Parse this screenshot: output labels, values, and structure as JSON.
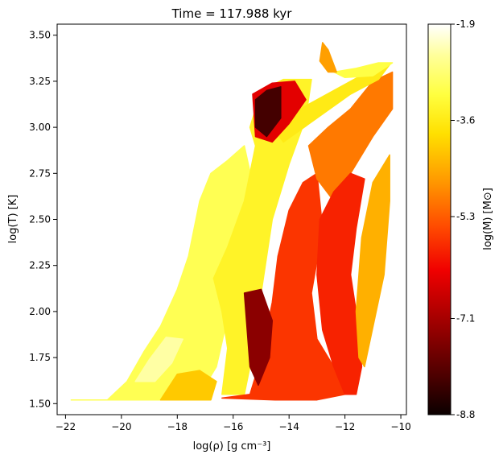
{
  "chart_data": {
    "type": "scatter",
    "title": "Time = 117.988 kyr",
    "xlabel": "log(ρ) [g cm⁻³]",
    "ylabel": "log(T) [K]",
    "xlim": [
      -22.3,
      -9.8
    ],
    "ylim": [
      1.44,
      3.56
    ],
    "xticks": [
      -22,
      -20,
      -18,
      -16,
      -14,
      -12,
      -10
    ],
    "xtick_labels": [
      "−22",
      "−20",
      "−18",
      "−16",
      "−14",
      "−12",
      "−10"
    ],
    "yticks": [
      1.5,
      1.75,
      2.0,
      2.25,
      2.5,
      2.75,
      3.0,
      3.25,
      3.5
    ],
    "ytick_labels": [
      "1.50",
      "1.75",
      "2.00",
      "2.25",
      "2.50",
      "2.75",
      "3.00",
      "3.25",
      "3.50"
    ],
    "colorbar": {
      "label": "log(M) [M⊙]",
      "colormap": "hot",
      "range": [
        -8.8,
        -1.9
      ],
      "ticks": [
        -8.8,
        -7.1,
        -5.3,
        -3.6,
        -1.9
      ],
      "tick_labels": [
        "-8.8",
        "-7.1",
        "-5.3",
        "-3.6",
        "-1.9"
      ]
    },
    "regions": [
      {
        "c": -3.0,
        "pts": [
          [
            -21.8,
            1.52
          ],
          [
            -20.5,
            1.52
          ],
          [
            -19.8,
            1.62
          ],
          [
            -19.2,
            1.78
          ],
          [
            -18.6,
            1.92
          ],
          [
            -18.0,
            2.12
          ],
          [
            -17.6,
            2.3
          ],
          [
            -17.2,
            2.6
          ],
          [
            -16.8,
            2.75
          ],
          [
            -16.2,
            2.82
          ],
          [
            -15.6,
            2.9
          ],
          [
            -15.2,
            2.62
          ],
          [
            -15.6,
            2.3
          ],
          [
            -16.0,
            2.1
          ],
          [
            -16.3,
            1.9
          ],
          [
            -16.6,
            1.7
          ],
          [
            -17.2,
            1.55
          ],
          [
            -18.0,
            1.52
          ],
          [
            -20.0,
            1.52
          ]
        ]
      },
      {
        "c": -2.4,
        "pts": [
          [
            -19.5,
            1.62
          ],
          [
            -18.8,
            1.62
          ],
          [
            -18.2,
            1.72
          ],
          [
            -17.8,
            1.85
          ],
          [
            -18.4,
            1.86
          ],
          [
            -19.0,
            1.74
          ]
        ]
      },
      {
        "c": -3.4,
        "pts": [
          [
            -16.7,
            2.18
          ],
          [
            -16.2,
            2.35
          ],
          [
            -15.6,
            2.6
          ],
          [
            -15.2,
            2.9
          ],
          [
            -15.4,
            3.0
          ],
          [
            -15.0,
            3.2
          ],
          [
            -14.2,
            3.26
          ],
          [
            -13.2,
            3.26
          ],
          [
            -13.4,
            3.05
          ],
          [
            -14.0,
            2.8
          ],
          [
            -14.6,
            2.5
          ],
          [
            -15.0,
            2.1
          ],
          [
            -15.4,
            1.7
          ],
          [
            -15.6,
            1.55
          ],
          [
            -16.4,
            1.55
          ],
          [
            -16.2,
            1.8
          ],
          [
            -16.4,
            2.0
          ]
        ]
      },
      {
        "c": -4.1,
        "pts": [
          [
            -18.6,
            1.52
          ],
          [
            -16.8,
            1.52
          ],
          [
            -16.6,
            1.62
          ],
          [
            -17.2,
            1.68
          ],
          [
            -18.0,
            1.66
          ]
        ]
      },
      {
        "c": -5.7,
        "pts": [
          [
            -16.4,
            1.53
          ],
          [
            -15.4,
            1.55
          ],
          [
            -15.0,
            1.75
          ],
          [
            -14.6,
            2.05
          ],
          [
            -14.4,
            2.3
          ],
          [
            -14.0,
            2.55
          ],
          [
            -13.5,
            2.7
          ],
          [
            -13.0,
            2.75
          ],
          [
            -12.8,
            2.45
          ],
          [
            -13.2,
            2.1
          ],
          [
            -13.0,
            1.85
          ],
          [
            -12.4,
            1.7
          ],
          [
            -12.0,
            1.55
          ],
          [
            -13.0,
            1.52
          ],
          [
            -14.5,
            1.52
          ]
        ]
      },
      {
        "c": -5.0,
        "pts": [
          [
            -13.3,
            2.9
          ],
          [
            -12.6,
            3.0
          ],
          [
            -11.8,
            3.1
          ],
          [
            -11.0,
            3.25
          ],
          [
            -10.3,
            3.3
          ],
          [
            -10.3,
            3.1
          ],
          [
            -11.0,
            2.95
          ],
          [
            -11.8,
            2.75
          ],
          [
            -12.4,
            2.6
          ],
          [
            -13.0,
            2.72
          ]
        ]
      },
      {
        "c": -5.9,
        "pts": [
          [
            -12.9,
            2.5
          ],
          [
            -12.4,
            2.65
          ],
          [
            -11.8,
            2.75
          ],
          [
            -11.3,
            2.72
          ],
          [
            -11.6,
            2.45
          ],
          [
            -11.8,
            2.2
          ],
          [
            -11.5,
            1.9
          ],
          [
            -11.4,
            1.7
          ],
          [
            -11.6,
            1.55
          ],
          [
            -12.0,
            1.55
          ],
          [
            -12.4,
            1.7
          ],
          [
            -12.8,
            1.9
          ],
          [
            -13.0,
            2.2
          ]
        ]
      },
      {
        "c": -4.4,
        "pts": [
          [
            -11.3,
            1.7
          ],
          [
            -10.6,
            2.2
          ],
          [
            -10.4,
            2.6
          ],
          [
            -10.4,
            2.85
          ],
          [
            -11.0,
            2.7
          ],
          [
            -11.4,
            2.4
          ],
          [
            -11.6,
            2.0
          ],
          [
            -11.5,
            1.75
          ]
        ]
      },
      {
        "c": -3.6,
        "pts": [
          [
            -14.6,
            3.0
          ],
          [
            -13.6,
            3.1
          ],
          [
            -12.4,
            3.2
          ],
          [
            -11.2,
            3.3
          ],
          [
            -10.4,
            3.34
          ],
          [
            -10.8,
            3.26
          ],
          [
            -11.8,
            3.18
          ],
          [
            -13.0,
            3.05
          ],
          [
            -14.2,
            2.92
          ]
        ]
      },
      {
        "c": -3.1,
        "pts": [
          [
            -12.4,
            3.3
          ],
          [
            -11.6,
            3.32
          ],
          [
            -10.8,
            3.35
          ],
          [
            -10.3,
            3.35
          ],
          [
            -11.0,
            3.28
          ],
          [
            -12.0,
            3.27
          ]
        ]
      },
      {
        "c": -6.4,
        "pts": [
          [
            -15.3,
            3.18
          ],
          [
            -14.6,
            3.24
          ],
          [
            -13.8,
            3.25
          ],
          [
            -13.4,
            3.15
          ],
          [
            -14.0,
            3.02
          ],
          [
            -14.6,
            2.92
          ],
          [
            -15.2,
            2.95
          ]
        ]
      },
      {
        "c": -8.2,
        "pts": [
          [
            -15.2,
            3.15
          ],
          [
            -14.8,
            3.2
          ],
          [
            -14.3,
            3.22
          ],
          [
            -14.3,
            3.05
          ],
          [
            -14.8,
            2.95
          ],
          [
            -15.2,
            3.0
          ]
        ]
      },
      {
        "c": -7.4,
        "pts": [
          [
            -15.6,
            2.1
          ],
          [
            -15.0,
            2.12
          ],
          [
            -14.6,
            1.95
          ],
          [
            -14.7,
            1.75
          ],
          [
            -15.1,
            1.6
          ],
          [
            -15.4,
            1.7
          ]
        ]
      },
      {
        "c": -4.6,
        "pts": [
          [
            -12.8,
            3.46
          ],
          [
            -12.6,
            3.42
          ],
          [
            -12.3,
            3.3
          ],
          [
            -12.6,
            3.3
          ],
          [
            -12.9,
            3.36
          ]
        ]
      }
    ]
  }
}
